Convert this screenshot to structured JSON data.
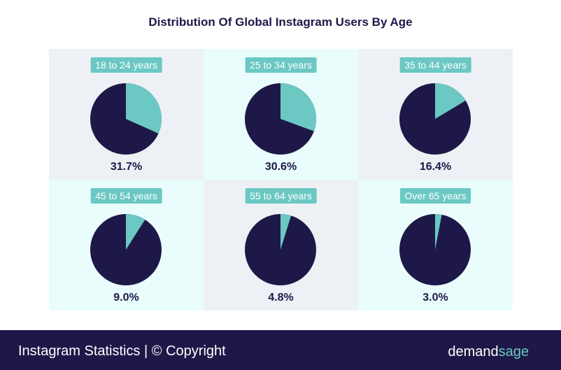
{
  "chart_data": {
    "type": "pie",
    "title": "Distribution Of Global Instagram Users By Age",
    "categories": [
      "18 to 24 years",
      "25 to 34 years",
      "35 to 44 years",
      "45 to 54 years",
      "55 to 64 years",
      "Over 65 years"
    ],
    "values": [
      31.7,
      30.6,
      16.4,
      9.0,
      4.8,
      3.0
    ],
    "labels": [
      "31.7%",
      "30.6%",
      "16.4%",
      "9.0%",
      "4.8%",
      "3.0%"
    ],
    "colors": {
      "highlight": "#6bc8c3",
      "rest": "#1e1848"
    }
  },
  "footer": {
    "text": "Instagram Statistics | © Copyright",
    "logo_main": "demand",
    "logo_accent": "sage"
  }
}
